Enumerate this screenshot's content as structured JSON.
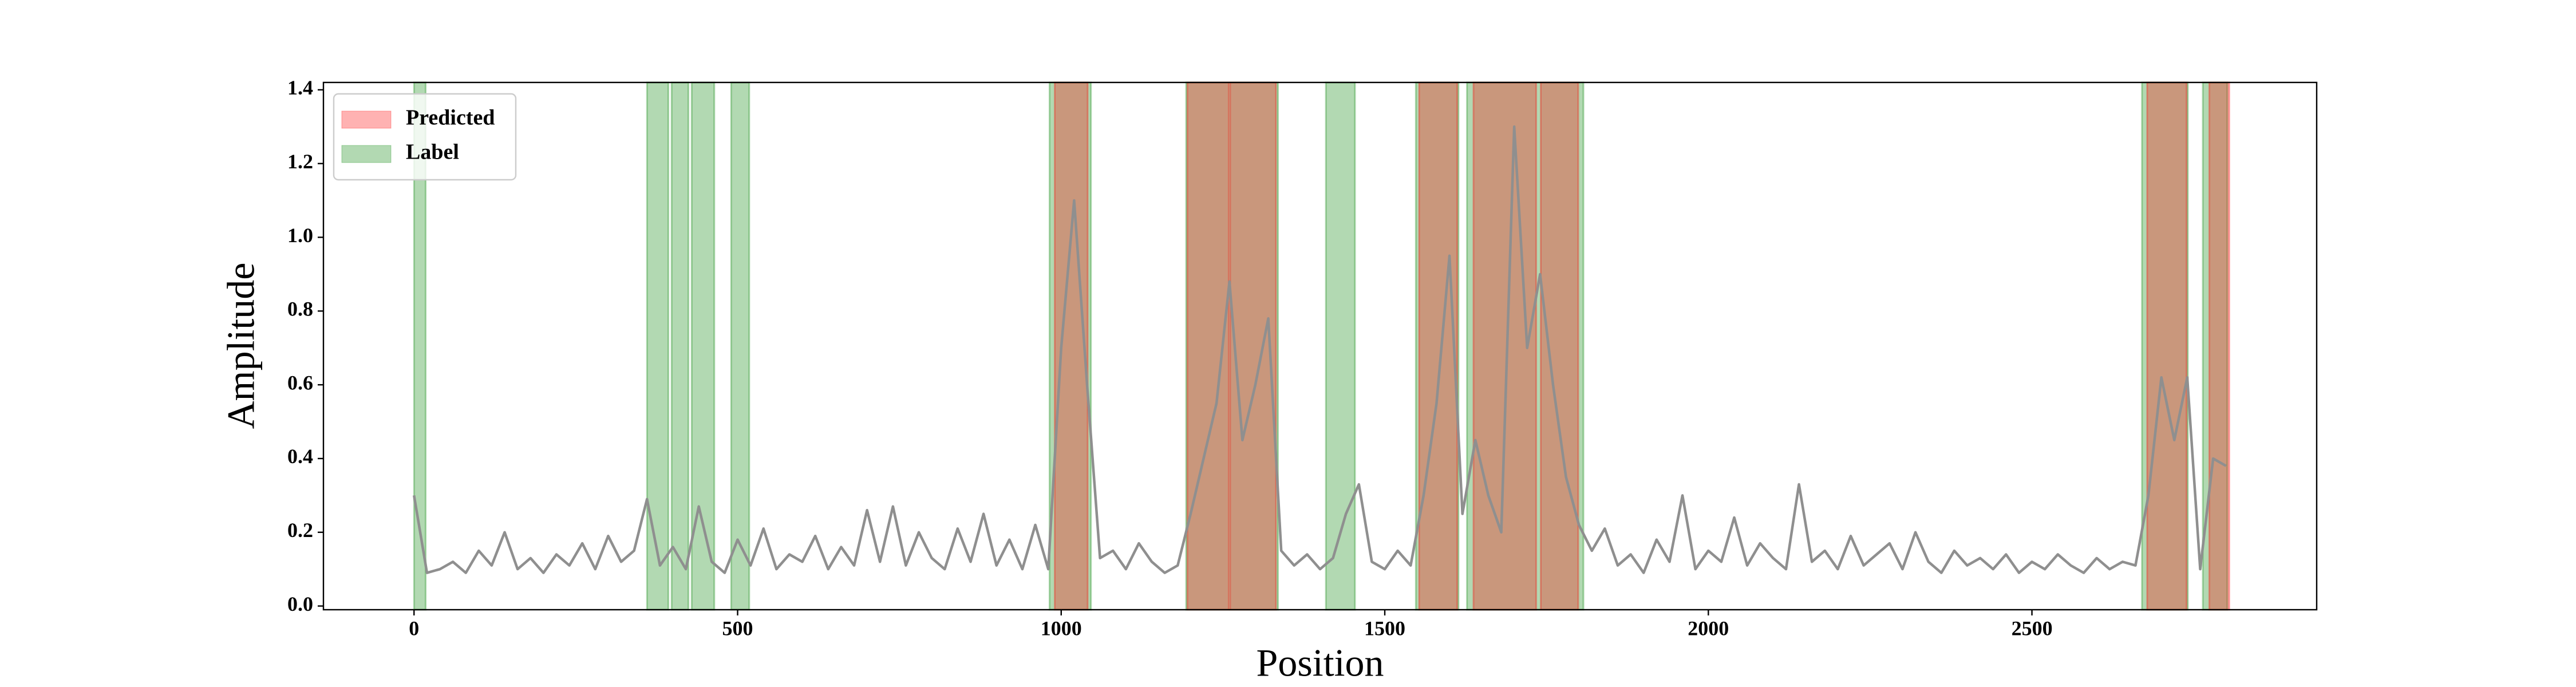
{
  "chart_data": {
    "type": "line",
    "xlabel": "Position",
    "ylabel": "Amplitude",
    "xlim": [
      -140,
      2940
    ],
    "xticks": [
      0,
      500,
      1000,
      1500,
      2000,
      2500
    ],
    "ylim": [
      -0.01,
      1.42
    ],
    "yticks": [
      {
        "value": 0,
        "label": "0.0"
      },
      0.2,
      0.4,
      0.6,
      0.8,
      {
        "value": 1,
        "label": "1.0"
      },
      1.2,
      1.4
    ],
    "grid": false,
    "legend": "upper left",
    "spans": [
      {
        "name": "Predicted",
        "color": "#ff0000",
        "ranges": [
          [
            990,
            1041
          ],
          [
            1195,
            1259
          ],
          [
            1261,
            1332
          ],
          [
            1553,
            1612
          ],
          [
            1637,
            1734
          ],
          [
            1741,
            1799
          ],
          [
            2678,
            2739
          ],
          [
            2774,
            2805
          ]
        ]
      },
      {
        "name": "Label",
        "color": "#008000",
        "ranges": [
          [
            0,
            18
          ],
          [
            360,
            393
          ],
          [
            398,
            424
          ],
          [
            429,
            464
          ],
          [
            490,
            518
          ],
          [
            982,
            1046
          ],
          [
            1193,
            1335
          ],
          [
            1409,
            1454
          ],
          [
            1548,
            1614
          ],
          [
            1627,
            1807
          ],
          [
            2670,
            2741
          ],
          [
            2764,
            2802
          ]
        ]
      }
    ],
    "series": [
      {
        "color": "#8f8f8f",
        "x": [
          0,
          20,
          40,
          60,
          80,
          100,
          120,
          140,
          160,
          180,
          200,
          220,
          240,
          260,
          280,
          300,
          320,
          340,
          360,
          380,
          400,
          420,
          440,
          460,
          480,
          500,
          520,
          540,
          560,
          580,
          600,
          620,
          640,
          660,
          680,
          700,
          720,
          740,
          760,
          780,
          800,
          820,
          840,
          860,
          880,
          900,
          920,
          940,
          960,
          980,
          1000,
          1020,
          1040,
          1060,
          1080,
          1100,
          1120,
          1140,
          1160,
          1180,
          1200,
          1220,
          1240,
          1260,
          1280,
          1300,
          1320,
          1340,
          1360,
          1380,
          1400,
          1420,
          1440,
          1460,
          1480,
          1500,
          1520,
          1540,
          1560,
          1580,
          1600,
          1620,
          1640,
          1660,
          1680,
          1700,
          1720,
          1740,
          1760,
          1780,
          1800,
          1820,
          1840,
          1860,
          1880,
          1900,
          1920,
          1940,
          1960,
          1980,
          2000,
          2020,
          2040,
          2060,
          2080,
          2100,
          2120,
          2140,
          2160,
          2180,
          2200,
          2220,
          2240,
          2260,
          2280,
          2300,
          2320,
          2340,
          2360,
          2380,
          2400,
          2420,
          2440,
          2460,
          2480,
          2500,
          2520,
          2540,
          2560,
          2580,
          2600,
          2620,
          2640,
          2660,
          2680,
          2700,
          2720,
          2740,
          2760,
          2780,
          2800
        ],
        "values": [
          0.3,
          0.09,
          0.1,
          0.12,
          0.09,
          0.15,
          0.11,
          0.2,
          0.1,
          0.13,
          0.09,
          0.14,
          0.11,
          0.17,
          0.1,
          0.19,
          0.12,
          0.15,
          0.29,
          0.11,
          0.16,
          0.1,
          0.27,
          0.12,
          0.09,
          0.18,
          0.11,
          0.21,
          0.1,
          0.14,
          0.12,
          0.19,
          0.1,
          0.16,
          0.11,
          0.26,
          0.12,
          0.27,
          0.11,
          0.2,
          0.13,
          0.1,
          0.21,
          0.12,
          0.25,
          0.11,
          0.18,
          0.1,
          0.22,
          0.1,
          0.7,
          1.1,
          0.6,
          0.13,
          0.15,
          0.1,
          0.17,
          0.12,
          0.09,
          0.11,
          0.25,
          0.4,
          0.55,
          0.88,
          0.45,
          0.6,
          0.78,
          0.15,
          0.11,
          0.14,
          0.1,
          0.13,
          0.25,
          0.33,
          0.12,
          0.1,
          0.15,
          0.11,
          0.3,
          0.55,
          0.95,
          0.25,
          0.45,
          0.3,
          0.2,
          1.3,
          0.7,
          0.9,
          0.6,
          0.35,
          0.22,
          0.15,
          0.21,
          0.11,
          0.14,
          0.09,
          0.18,
          0.12,
          0.3,
          0.1,
          0.15,
          0.12,
          0.24,
          0.11,
          0.17,
          0.13,
          0.1,
          0.33,
          0.12,
          0.15,
          0.1,
          0.19,
          0.11,
          0.14,
          0.17,
          0.1,
          0.2,
          0.12,
          0.09,
          0.15,
          0.11,
          0.13,
          0.1,
          0.14,
          0.09,
          0.12,
          0.1,
          0.14,
          0.11,
          0.09,
          0.13,
          0.1,
          0.12,
          0.11,
          0.3,
          0.62,
          0.45,
          0.62,
          0.1,
          0.4,
          0.38
        ]
      }
    ]
  }
}
